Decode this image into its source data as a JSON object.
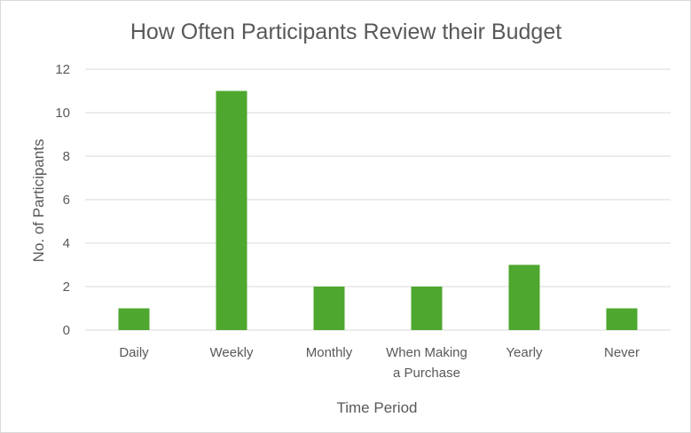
{
  "chart_data": {
    "type": "bar",
    "title": "How Often Participants Review their Budget",
    "xlabel": "Time Period",
    "ylabel": "No. of Participants",
    "categories": [
      "Daily",
      "Weekly",
      "Monthly",
      "When Making a Purchase",
      "Yearly",
      "Never"
    ],
    "category_lines": [
      [
        "Daily"
      ],
      [
        "Weekly"
      ],
      [
        "Monthly"
      ],
      [
        "When Making",
        "a Purchase"
      ],
      [
        "Yearly"
      ],
      [
        "Never"
      ]
    ],
    "values": [
      1,
      11,
      2,
      2,
      3,
      1
    ],
    "ylim": [
      0,
      12
    ],
    "yticks": [
      0,
      2,
      4,
      6,
      8,
      10,
      12
    ],
    "grid": true,
    "legend": "none",
    "bar_color": "#4ea72e"
  }
}
